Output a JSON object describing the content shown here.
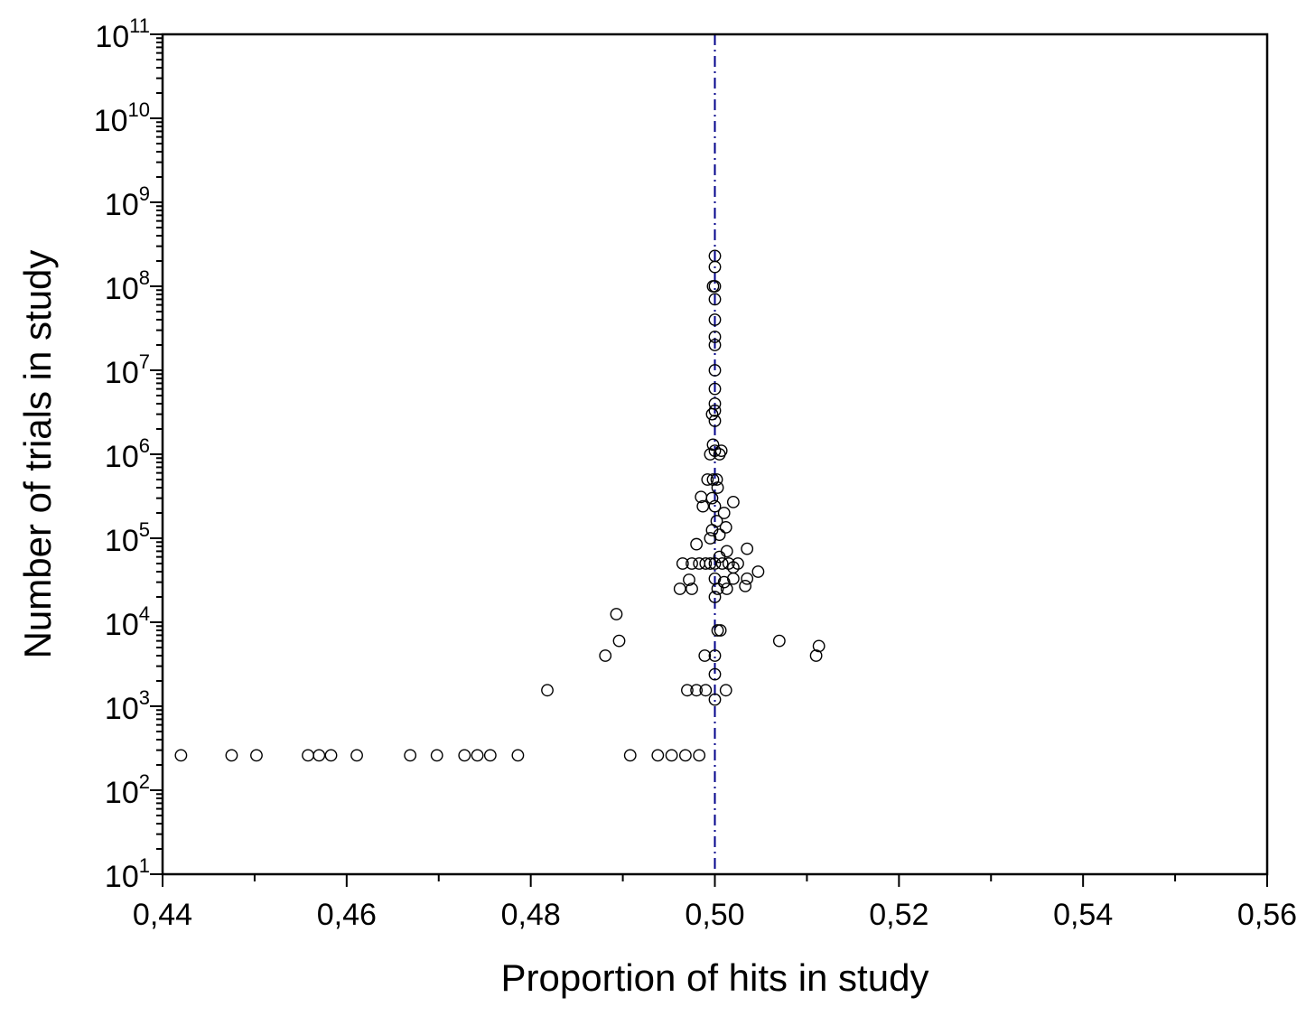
{
  "chart_data": {
    "type": "scatter",
    "title": "",
    "xlabel": "Proportion of hits in study",
    "ylabel": "Number of trials in study",
    "xlim": [
      0.44,
      0.56
    ],
    "ylim": [
      10,
      100000000000
    ],
    "yscale": "log",
    "x_ticks": [
      0.44,
      0.46,
      0.48,
      0.5,
      0.52,
      0.54,
      0.56
    ],
    "x_tick_labels": [
      "0,44",
      "0,46",
      "0,48",
      "0,50",
      "0,52",
      "0,54",
      "0,56"
    ],
    "y_ticks": [
      1,
      2,
      3,
      4,
      5,
      6,
      7,
      8,
      9,
      10,
      11
    ],
    "y_tick_base": "10",
    "y_tick_exponents": [
      "1",
      "2",
      "3",
      "4",
      "5",
      "6",
      "7",
      "8",
      "9",
      "10",
      "11"
    ],
    "reference_line": {
      "x": 0.5,
      "style": "dash-dot",
      "color": "#00008b"
    },
    "marker": {
      "shape": "open-circle",
      "color": "#000000"
    },
    "grid": false,
    "points": [
      [
        0.442,
        260
      ],
      [
        0.4475,
        260
      ],
      [
        0.4502,
        260
      ],
      [
        0.4558,
        260
      ],
      [
        0.457,
        260
      ],
      [
        0.4583,
        260
      ],
      [
        0.4611,
        260
      ],
      [
        0.4669,
        260
      ],
      [
        0.4698,
        260
      ],
      [
        0.4728,
        260
      ],
      [
        0.4742,
        260
      ],
      [
        0.4756,
        260
      ],
      [
        0.4786,
        260
      ],
      [
        0.4908,
        260
      ],
      [
        0.4938,
        260
      ],
      [
        0.4953,
        260
      ],
      [
        0.4968,
        260
      ],
      [
        0.4983,
        260
      ],
      [
        0.4818,
        1550
      ],
      [
        0.497,
        1550
      ],
      [
        0.498,
        1550
      ],
      [
        0.499,
        1550
      ],
      [
        0.5,
        1200
      ],
      [
        0.5012,
        1550
      ],
      [
        0.5,
        2400
      ],
      [
        0.4881,
        4000
      ],
      [
        0.4896,
        6000
      ],
      [
        0.4893,
        12500
      ],
      [
        0.4989,
        4000
      ],
      [
        0.5,
        4000
      ],
      [
        0.507,
        6000
      ],
      [
        0.511,
        4000
      ],
      [
        0.5113,
        5200
      ],
      [
        0.5003,
        8000
      ],
      [
        0.5006,
        8000
      ],
      [
        0.4962,
        25000
      ],
      [
        0.4975,
        25000
      ],
      [
        0.4972,
        32000
      ],
      [
        0.4965,
        50000
      ],
      [
        0.4975,
        50000
      ],
      [
        0.4983,
        50000
      ],
      [
        0.499,
        50000
      ],
      [
        0.4995,
        50000
      ],
      [
        0.5,
        50000
      ],
      [
        0.5008,
        50000
      ],
      [
        0.5015,
        50000
      ],
      [
        0.5025,
        50000
      ],
      [
        0.5,
        20000
      ],
      [
        0.5003,
        25000
      ],
      [
        0.5,
        33000
      ],
      [
        0.501,
        30000
      ],
      [
        0.5013,
        25000
      ],
      [
        0.502,
        33000
      ],
      [
        0.5033,
        27000
      ],
      [
        0.5035,
        33000
      ],
      [
        0.5047,
        40000
      ],
      [
        0.5035,
        75000
      ],
      [
        0.5013,
        70000
      ],
      [
        0.5005,
        60000
      ],
      [
        0.502,
        45000
      ],
      [
        0.498,
        85000
      ],
      [
        0.4995,
        100000
      ],
      [
        0.4997,
        125000
      ],
      [
        0.5005,
        110000
      ],
      [
        0.5012,
        135000
      ],
      [
        0.5002,
        160000
      ],
      [
        0.501,
        200000
      ],
      [
        0.4987,
        240000
      ],
      [
        0.5,
        240000
      ],
      [
        0.502,
        270000
      ],
      [
        0.4985,
        310000
      ],
      [
        0.4997,
        300000
      ],
      [
        0.5003,
        400000
      ],
      [
        0.4992,
        500000
      ],
      [
        0.4998,
        500000
      ],
      [
        0.5002,
        500000
      ],
      [
        0.4995,
        1000000
      ],
      [
        0.5,
        1100000
      ],
      [
        0.5005,
        1000000
      ],
      [
        0.5007,
        1100000
      ],
      [
        0.4998,
        1300000
      ],
      [
        0.4997,
        3000000
      ],
      [
        0.5,
        2500000
      ],
      [
        0.5,
        3300000
      ],
      [
        0.5,
        4000000
      ],
      [
        0.5,
        6000000
      ],
      [
        0.5,
        10000000
      ],
      [
        0.5,
        20000000
      ],
      [
        0.5,
        25000000
      ],
      [
        0.5,
        40000000
      ],
      [
        0.5,
        70000000
      ],
      [
        0.4998,
        100000000
      ],
      [
        0.5,
        100000000
      ],
      [
        0.5,
        170000000
      ],
      [
        0.5,
        230000000
      ]
    ]
  }
}
